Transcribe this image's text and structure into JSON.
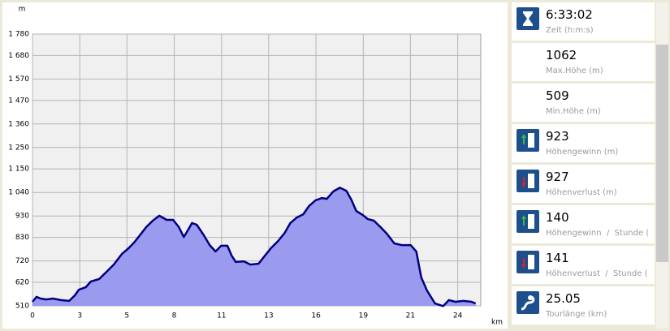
{
  "chart_data": {
    "type": "area",
    "y_axis_label": "m",
    "x_axis_label": "km",
    "x": [
      0,
      0.23,
      0.46,
      0.78,
      1.15,
      1.6,
      2.07,
      2.39,
      2.62,
      3.0,
      3.3,
      3.76,
      4.13,
      4.59,
      5.05,
      5.42,
      5.74,
      6.06,
      6.42,
      6.79,
      7.16,
      7.57,
      7.94,
      8.26,
      8.54,
      8.77,
      9.0,
      9.27,
      9.64,
      10.0,
      10.33,
      10.65,
      11.0,
      11.24,
      11.47,
      11.93,
      12.3,
      12.76,
      13.08,
      13.45,
      13.86,
      14.23,
      14.55,
      14.92,
      15.28,
      15.6,
      15.97,
      16.34,
      16.61,
      16.98,
      17.35,
      17.71,
      17.99,
      18.27,
      18.63,
      18.91,
      19.27,
      19.64,
      20.0,
      20.42,
      20.84,
      21.34,
      21.66,
      21.94,
      22.26,
      22.72,
      23.18,
      23.5,
      23.87,
      24.32,
      24.78,
      25.01
    ],
    "y": [
      529,
      552,
      544,
      540,
      544,
      537,
      533,
      559,
      586,
      597,
      624,
      635,
      665,
      703,
      753,
      779,
      806,
      840,
      878,
      908,
      931,
      912,
      912,
      878,
      832,
      863,
      897,
      889,
      844,
      794,
      764,
      791,
      791,
      745,
      715,
      718,
      703,
      707,
      741,
      779,
      813,
      851,
      897,
      923,
      938,
      976,
      1003,
      1014,
      1010,
      1045,
      1062,
      1048,
      1007,
      954,
      935,
      916,
      908,
      878,
      847,
      802,
      794,
      794,
      764,
      643,
      582,
      521,
      509,
      537,
      529,
      533,
      529,
      521
    ],
    "color": "#9a9aee",
    "line_color": "#000080",
    "xlim": [
      0,
      25.3
    ],
    "ylim": [
      510,
      1780
    ],
    "xticks": [
      0,
      {
        "value": 2.67,
        "label": "3"
      },
      {
        "value": 5.33,
        "label": "5"
      },
      8,
      {
        "value": 10.67,
        "label": "11"
      },
      {
        "value": 13.33,
        "label": "13"
      },
      16,
      {
        "value": 18.67,
        "label": "19"
      },
      {
        "value": 21.33,
        "label": "21"
      },
      24
    ],
    "yticks": [
      510,
      620,
      720,
      830,
      930,
      {
        "value": 1040,
        "label": "1 040"
      },
      {
        "value": 1150,
        "label": "1 150"
      },
      {
        "value": 1250,
        "label": "1 250"
      },
      {
        "value": 1360,
        "label": "1 360"
      },
      {
        "value": 1470,
        "label": "1 470"
      },
      {
        "value": 1570,
        "label": "1 570"
      },
      {
        "value": 1680,
        "label": "1 680"
      },
      {
        "value": 1780,
        "label": "1 780"
      }
    ],
    "grid": true
  },
  "stats": [
    {
      "value": "6:33:02",
      "label": "Zeit (h:m:s)"
    },
    {
      "value": "1062",
      "label": "Max.Höhe (m)"
    },
    {
      "value": "509",
      "label": "Min.Höhe (m)"
    },
    {
      "value": "923",
      "label": "Höhengewinn (m)"
    },
    {
      "value": "927",
      "label": "Höhenverlust (m)"
    },
    {
      "value": "140",
      "label": "Höhengewinn  /  Stunde ("
    },
    {
      "value": "141",
      "label": "Höhenverlust  /  Stunde ("
    },
    {
      "value": "25.05",
      "label": "Tourlänge (km)"
    }
  ]
}
